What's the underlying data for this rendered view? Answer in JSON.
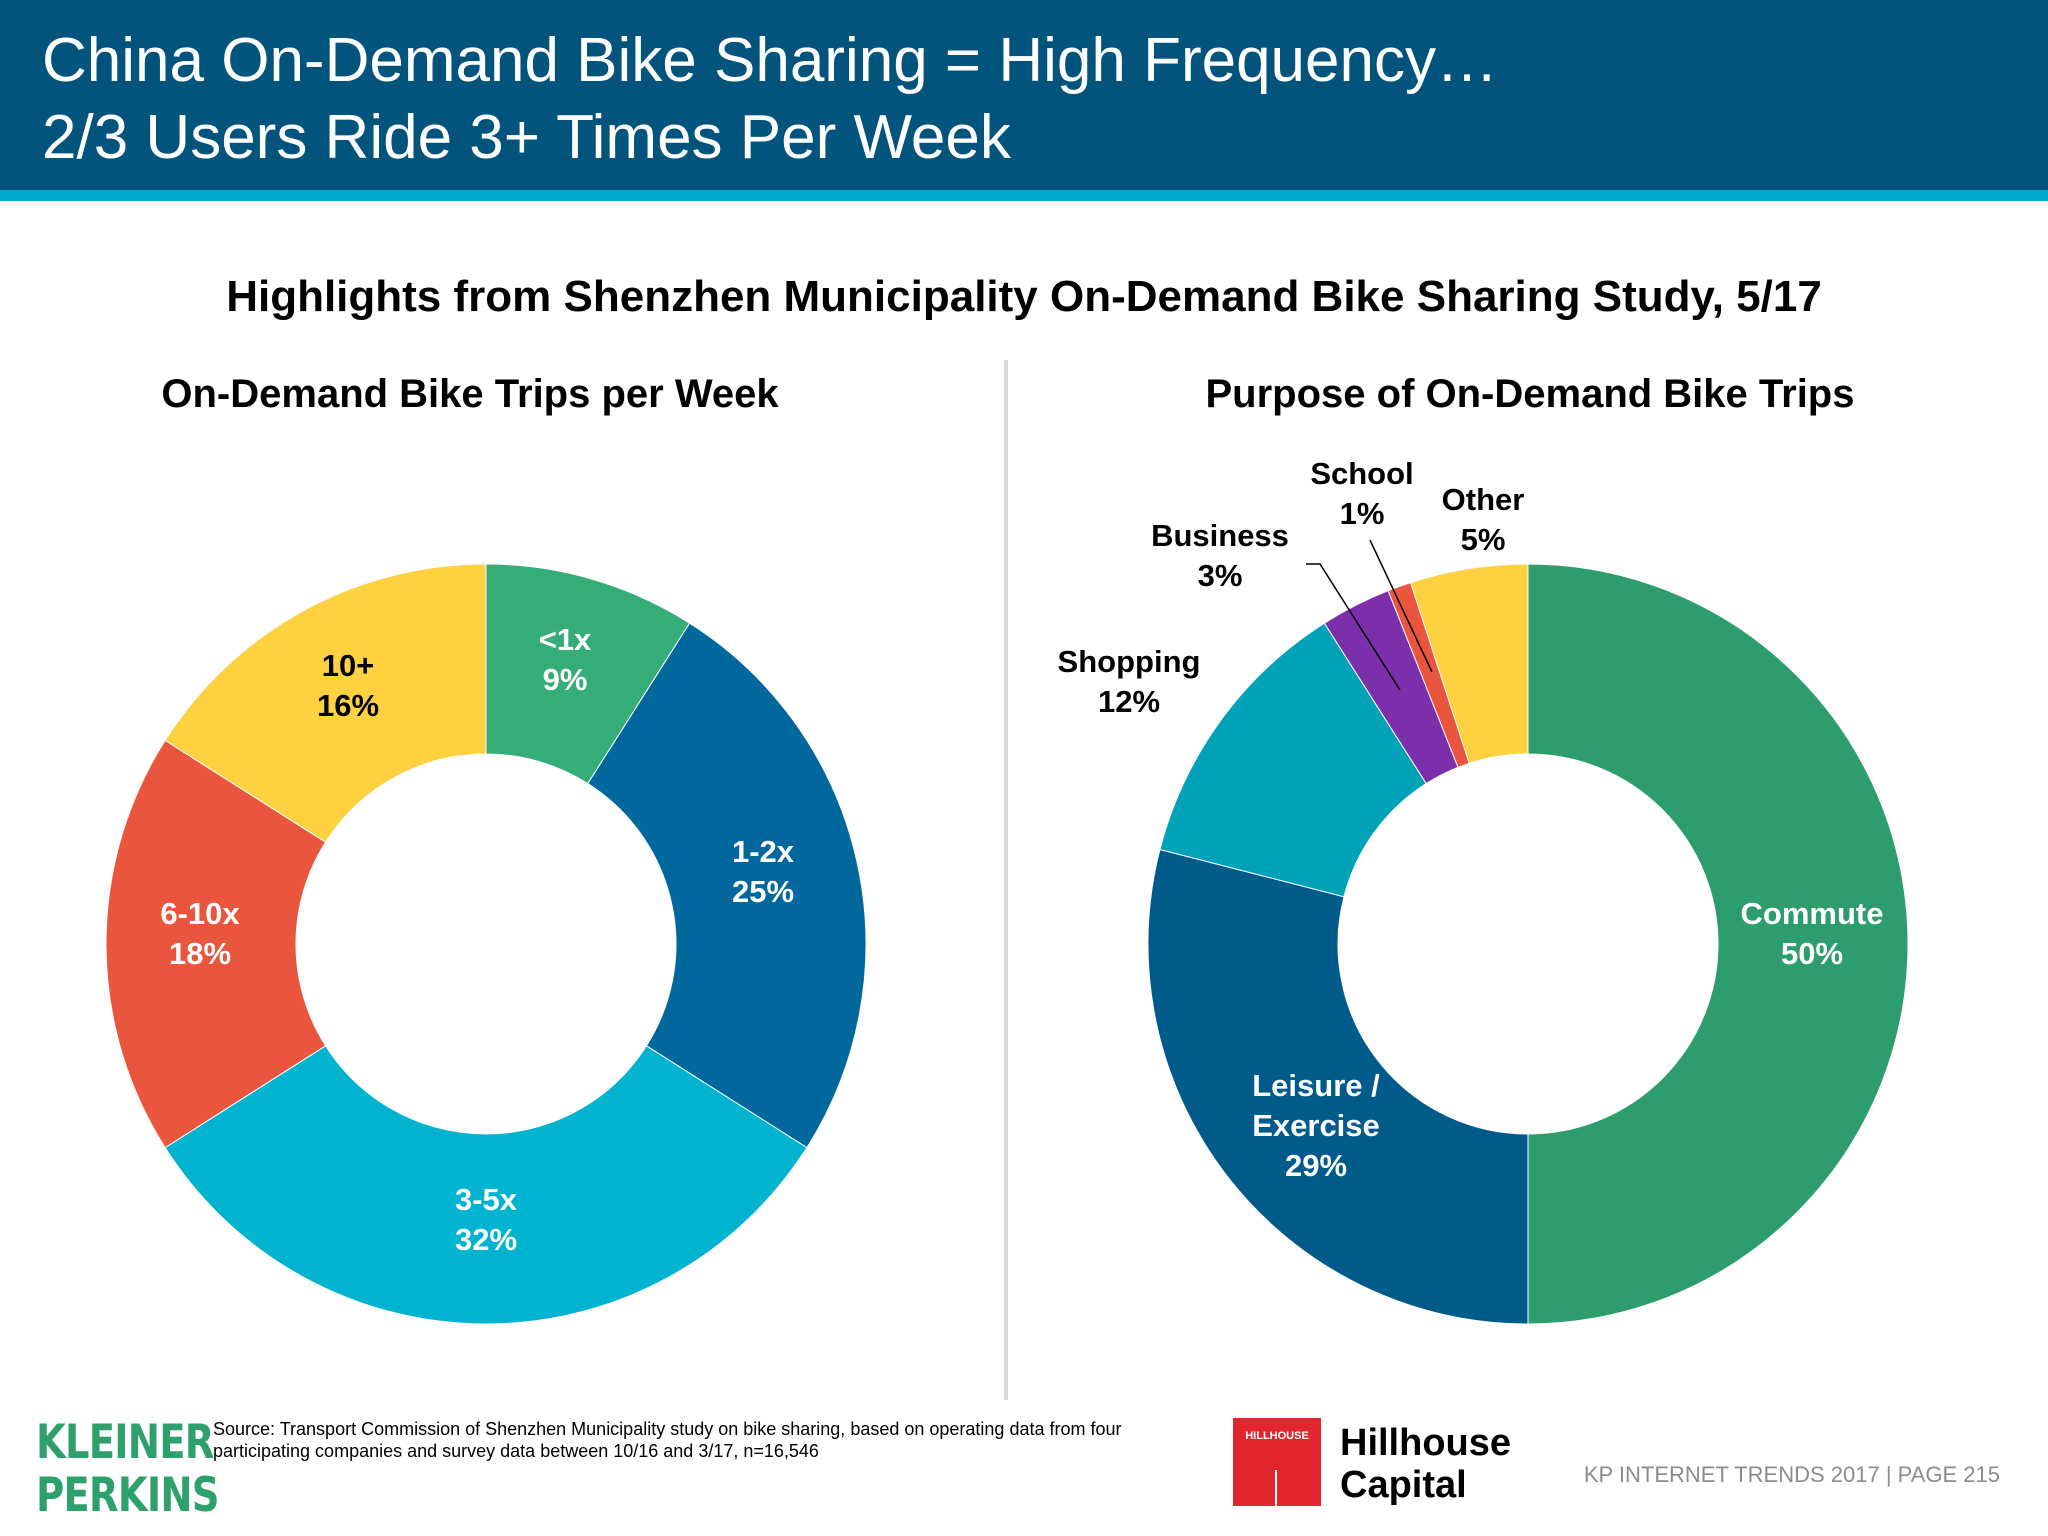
{
  "header": {
    "title_line1": "China On-Demand Bike Sharing = High Frequency…",
    "title_line2": "2/3 Users Ride 3+ Times Per Week"
  },
  "subtitle": "Highlights from Shenzhen Municipality On-Demand Bike Sharing Study, 5/17",
  "chart_data": [
    {
      "type": "pie",
      "donut": true,
      "title": "On-Demand Bike Trips per Week",
      "slices": [
        {
          "label": "<1x",
          "value": 9,
          "value_label": "9%",
          "color": "#35AD77",
          "label_color": "#ffffff"
        },
        {
          "label": "1-2x",
          "value": 25,
          "value_label": "25%",
          "color": "#00689D",
          "label_color": "#ffffff"
        },
        {
          "label": "3-5x",
          "value": 32,
          "value_label": "32%",
          "color": "#00B4D0",
          "label_color": "#ffffff"
        },
        {
          "label": "6-10x",
          "value": 18,
          "value_label": "18%",
          "color": "#EA553D",
          "label_color": "#ffffff"
        },
        {
          "label": "10+",
          "value": 16,
          "value_label": "16%",
          "color": "#FED141",
          "label_color": "#000000"
        }
      ]
    },
    {
      "type": "pie",
      "donut": true,
      "title": "Purpose of On-Demand Bike Trips",
      "slices": [
        {
          "label": "Commute",
          "value": 50,
          "value_label": "50%",
          "color": "#2E9D6E",
          "label_color": "#ffffff"
        },
        {
          "label": "Leisure / Exercise",
          "value": 29,
          "value_label": "29%",
          "color": "#005B8B",
          "label_color": "#ffffff"
        },
        {
          "label": "Shopping",
          "value": 12,
          "value_label": "12%",
          "color": "#00A2B8",
          "label_color": "#000000"
        },
        {
          "label": "Business",
          "value": 3,
          "value_label": "3%",
          "color": "#7B2FAA",
          "label_color": "#000000"
        },
        {
          "label": "School",
          "value": 1,
          "value_label": "1%",
          "color": "#EA553D",
          "label_color": "#000000"
        },
        {
          "label": "Other",
          "value": 5,
          "value_label": "5%",
          "color": "#FED141",
          "label_color": "#000000"
        }
      ]
    }
  ],
  "footer": {
    "kp_logo_line1": "KLEINER",
    "kp_logo_line2": "PERKINS",
    "source": "Source: Transport Commission of Shenzhen Municipality study on bike sharing, based on operating data from four participating companies and survey data between 10/16 and 3/17, n=16,546",
    "hh_box_text": "HILLHOUSE",
    "hh_name_line1": "Hillhouse",
    "hh_name_line2": "Capital",
    "page_info": "KP INTERNET TRENDS 2017   |   PAGE 215"
  }
}
